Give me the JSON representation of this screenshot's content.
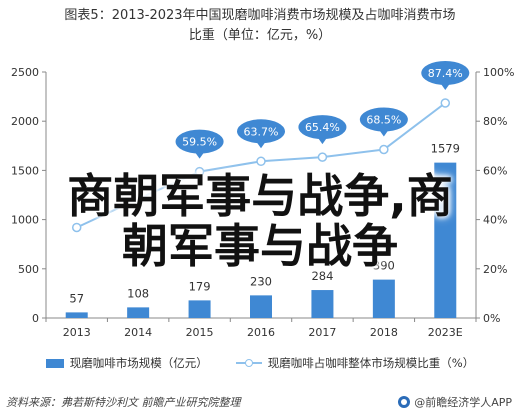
{
  "title_line1": "图表5：2013-2023年中国现磨咖啡消费市场规模及占咖啡消费市场",
  "title_line2": "比重（单位：亿元，%）",
  "overlay_line1": "商朝军事与战争,商",
  "overlay_line2": "朝军事与战争",
  "source": "资料来源：弗若斯特沙利文 前瞻产业研究院整理",
  "brand": "@前瞻经济学人APP",
  "colors": {
    "bar": "#3f88d3",
    "line": "#8ec1ec",
    "bubble": "#3f88d3"
  },
  "chart_data": {
    "type": "bar",
    "categories": [
      "2013",
      "2014",
      "2015",
      "2016",
      "2017",
      "2018",
      "2023E"
    ],
    "series": [
      {
        "name": "现磨咖啡市场规模（亿元）",
        "type": "bar",
        "axis": "left",
        "values": [
          57,
          108,
          179,
          230,
          284,
          390,
          1579
        ]
      },
      {
        "name": "现磨咖啡占咖啡整体市场规模比重（%）",
        "type": "line",
        "axis": "right",
        "values": [
          36.8,
          48.4,
          59.5,
          63.7,
          65.4,
          68.5,
          87.4
        ]
      }
    ],
    "bar_labels": [
      "57",
      "108",
      "179",
      "230",
      "284",
      "390",
      "1579"
    ],
    "line_labels": [
      "",
      "",
      "59.5%",
      "63.7%",
      "65.4%",
      "68.5%",
      "87.4%"
    ],
    "y_left": {
      "ticks": [
        "0",
        "500",
        "1000",
        "1500",
        "2000",
        "2500"
      ],
      "lim": [
        0,
        2500
      ]
    },
    "y_right": {
      "ticks": [
        "0%",
        "20%",
        "40%",
        "60%",
        "80%",
        "100%"
      ],
      "lim": [
        0,
        100
      ]
    },
    "legend_position": "bottom",
    "grid": false
  }
}
